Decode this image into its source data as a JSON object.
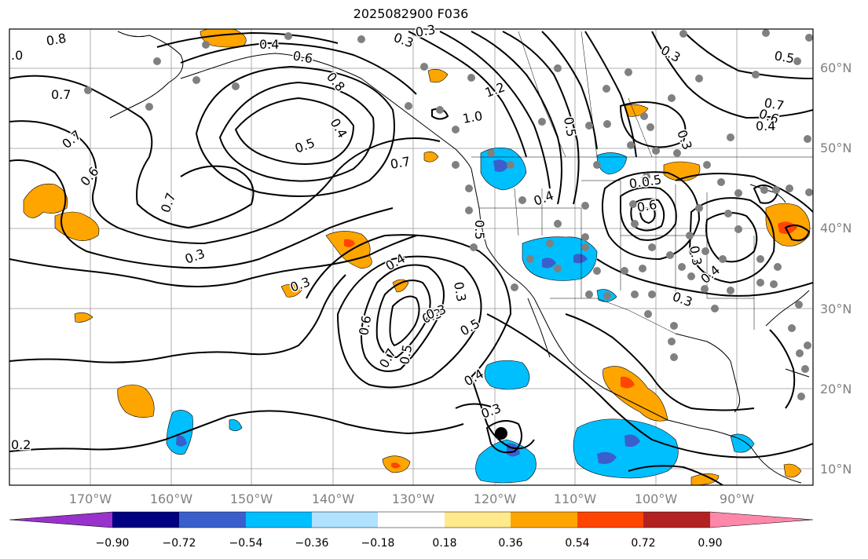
{
  "title": "2025082900 F036",
  "lat_labels": [
    "60°N",
    "50°N",
    "40°N",
    "30°N",
    "20°N",
    "10°N"
  ],
  "lon_labels": [
    "170°W",
    "160°W",
    "150°W",
    "140°W",
    "130°W",
    "120°W",
    "110°W",
    "100°W",
    "90°W"
  ],
  "colorbar": {
    "ticks": [
      "−0.90",
      "−0.72",
      "−0.54",
      "−0.36",
      "−0.18",
      "0.18",
      "0.36",
      "0.54",
      "0.72",
      "0.90"
    ],
    "colors": [
      "#9932cc",
      "#000080",
      "#3a5fcd",
      "#00bfff",
      "#b0e2ff",
      "#ffffff",
      "#ffe98c",
      "#ffa500",
      "#ff4500",
      "#b22222",
      "#ff88aa"
    ]
  },
  "contour_labels": [
    {
      "text": "0.8"
    },
    {
      "text": ".0"
    },
    {
      "text": "0.4"
    },
    {
      "text": "0.3"
    },
    {
      "text": "0.3"
    },
    {
      "text": "0.6"
    },
    {
      "text": "0.8"
    },
    {
      "text": "0.7"
    },
    {
      "text": "0.7"
    },
    {
      "text": "0.6"
    },
    {
      "text": "0.5"
    },
    {
      "text": "0.4"
    },
    {
      "text": "0.7"
    },
    {
      "text": "0.7"
    },
    {
      "text": "1.2"
    },
    {
      "text": "1.0"
    },
    {
      "text": "0.5"
    },
    {
      "text": "0.3"
    },
    {
      "text": "0.3"
    },
    {
      "text": "0.6"
    },
    {
      "text": "0.5"
    },
    {
      "text": "0.4"
    },
    {
      "text": "0.7"
    },
    {
      "text": "0.5"
    },
    {
      "text": "0.4"
    },
    {
      "text": "0.5"
    },
    {
      "text": "0.3"
    },
    {
      "text": "0.3"
    },
    {
      "text": "0.4"
    },
    {
      "text": "0.3"
    },
    {
      "text": "0.3"
    },
    {
      "text": "0.6"
    },
    {
      "text": "0.7"
    },
    {
      "text": "0.5"
    },
    {
      "text": "0.3"
    },
    {
      "text": "0.5"
    },
    {
      "text": "0.4"
    },
    {
      "text": "0.3"
    },
    {
      "text": "0.2"
    },
    {
      "text": "0.6"
    },
    {
      "text": "0.5"
    },
    {
      "text": "0.3"
    },
    {
      "text": "0.4"
    },
    {
      "text": "0.3"
    }
  ]
}
